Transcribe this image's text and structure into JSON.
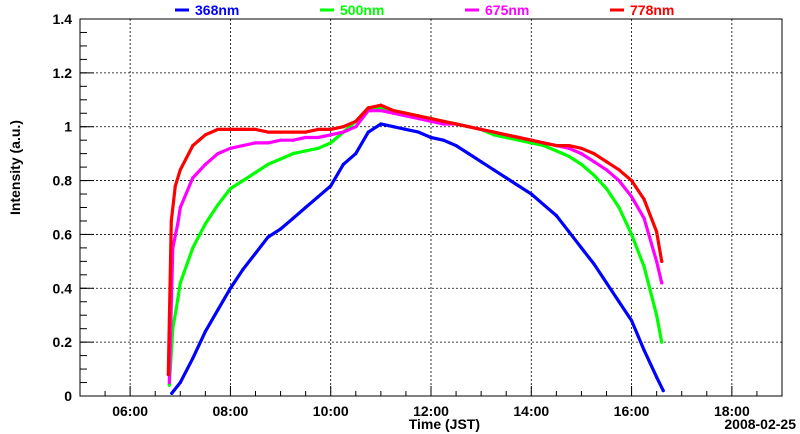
{
  "chart_data": {
    "type": "line",
    "title": "",
    "xlabel": "Time (JST)",
    "ylabel": "Intensity (a.u.)",
    "date_label": "2008-02-25",
    "x_unit": "hours JST",
    "xlim": [
      5.0,
      19.0
    ],
    "ylim": [
      0,
      1.4
    ],
    "x_ticks": [
      {
        "value": 6,
        "label": "06:00"
      },
      {
        "value": 8,
        "label": "08:00"
      },
      {
        "value": 10,
        "label": "10:00"
      },
      {
        "value": 12,
        "label": "12:00"
      },
      {
        "value": 14,
        "label": "14:00"
      },
      {
        "value": 16,
        "label": "16:00"
      },
      {
        "value": 18,
        "label": "18:00"
      }
    ],
    "y_ticks": [
      {
        "value": 0,
        "label": "0"
      },
      {
        "value": 0.2,
        "label": "0.2"
      },
      {
        "value": 0.4,
        "label": "0.4"
      },
      {
        "value": 0.6,
        "label": "0.6"
      },
      {
        "value": 0.8,
        "label": "0.8"
      },
      {
        "value": 1.0,
        "label": "1"
      },
      {
        "value": 1.2,
        "label": "1.2"
      },
      {
        "value": 1.4,
        "label": "1.4"
      }
    ],
    "grid": true,
    "legend_position": "top",
    "series": [
      {
        "name": "368nm",
        "color": "#0000ff",
        "x": [
          6.83,
          7.0,
          7.25,
          7.5,
          7.75,
          8.0,
          8.25,
          8.5,
          8.75,
          9.0,
          9.25,
          9.5,
          9.75,
          10.0,
          10.25,
          10.5,
          10.75,
          11.0,
          11.25,
          11.5,
          11.75,
          12.0,
          12.25,
          12.5,
          12.75,
          13.0,
          13.25,
          13.5,
          13.75,
          14.0,
          14.25,
          14.5,
          14.75,
          15.0,
          15.25,
          15.5,
          15.75,
          16.0,
          16.25,
          16.5,
          16.63
        ],
        "y": [
          0.01,
          0.05,
          0.14,
          0.24,
          0.32,
          0.4,
          0.47,
          0.53,
          0.59,
          0.62,
          0.66,
          0.7,
          0.74,
          0.78,
          0.86,
          0.9,
          0.98,
          1.01,
          1.0,
          0.99,
          0.98,
          0.96,
          0.95,
          0.93,
          0.9,
          0.87,
          0.84,
          0.81,
          0.78,
          0.75,
          0.71,
          0.67,
          0.61,
          0.55,
          0.49,
          0.42,
          0.35,
          0.28,
          0.17,
          0.07,
          0.02
        ]
      },
      {
        "name": "500nm",
        "color": "#00ff00",
        "x": [
          6.78,
          6.85,
          6.95,
          7.0,
          7.25,
          7.5,
          7.75,
          8.0,
          8.25,
          8.5,
          8.75,
          9.0,
          9.25,
          9.5,
          9.75,
          10.0,
          10.25,
          10.5,
          10.75,
          11.0,
          11.25,
          11.5,
          11.75,
          12.0,
          12.25,
          12.5,
          12.75,
          13.0,
          13.25,
          13.5,
          13.75,
          14.0,
          14.25,
          14.5,
          14.75,
          15.0,
          15.25,
          15.5,
          15.75,
          16.0,
          16.25,
          16.5,
          16.6
        ],
        "y": [
          0.04,
          0.25,
          0.36,
          0.42,
          0.55,
          0.64,
          0.71,
          0.77,
          0.8,
          0.83,
          0.86,
          0.88,
          0.9,
          0.91,
          0.92,
          0.94,
          0.98,
          1.02,
          1.07,
          1.07,
          1.06,
          1.05,
          1.04,
          1.03,
          1.02,
          1.01,
          1.0,
          0.99,
          0.97,
          0.96,
          0.95,
          0.94,
          0.93,
          0.91,
          0.89,
          0.86,
          0.82,
          0.77,
          0.7,
          0.6,
          0.48,
          0.3,
          0.2
        ]
      },
      {
        "name": "675nm",
        "color": "#ff00ff",
        "x": [
          6.78,
          6.85,
          6.95,
          7.0,
          7.25,
          7.5,
          7.75,
          8.0,
          8.25,
          8.5,
          8.75,
          9.0,
          9.25,
          9.5,
          9.75,
          10.0,
          10.25,
          10.5,
          10.75,
          11.0,
          11.25,
          11.5,
          11.75,
          12.0,
          12.25,
          12.5,
          12.75,
          13.0,
          13.25,
          13.5,
          13.75,
          14.0,
          14.25,
          14.5,
          14.75,
          15.0,
          15.25,
          15.5,
          15.75,
          16.0,
          16.25,
          16.5,
          16.6
        ],
        "y": [
          0.05,
          0.55,
          0.64,
          0.7,
          0.81,
          0.86,
          0.9,
          0.92,
          0.93,
          0.94,
          0.94,
          0.95,
          0.95,
          0.96,
          0.96,
          0.97,
          0.98,
          1.0,
          1.06,
          1.06,
          1.05,
          1.04,
          1.03,
          1.02,
          1.01,
          1.01,
          1.0,
          0.99,
          0.98,
          0.97,
          0.96,
          0.95,
          0.94,
          0.93,
          0.92,
          0.9,
          0.87,
          0.84,
          0.8,
          0.74,
          0.66,
          0.5,
          0.42
        ]
      },
      {
        "name": "778nm",
        "color": "#ff0000",
        "x": [
          6.76,
          6.82,
          6.9,
          7.0,
          7.25,
          7.5,
          7.75,
          8.0,
          8.25,
          8.5,
          8.75,
          9.0,
          9.25,
          9.5,
          9.75,
          10.0,
          10.25,
          10.5,
          10.75,
          11.0,
          11.25,
          11.5,
          11.75,
          12.0,
          12.25,
          12.5,
          12.75,
          13.0,
          13.25,
          13.5,
          13.75,
          14.0,
          14.25,
          14.5,
          14.75,
          15.0,
          15.25,
          15.5,
          15.75,
          16.0,
          16.25,
          16.5,
          16.6
        ],
        "y": [
          0.08,
          0.65,
          0.78,
          0.84,
          0.93,
          0.97,
          0.99,
          0.99,
          0.99,
          0.99,
          0.98,
          0.98,
          0.98,
          0.98,
          0.99,
          0.99,
          1.0,
          1.02,
          1.07,
          1.08,
          1.06,
          1.05,
          1.04,
          1.03,
          1.02,
          1.01,
          1.0,
          0.99,
          0.98,
          0.97,
          0.96,
          0.95,
          0.94,
          0.93,
          0.93,
          0.92,
          0.9,
          0.87,
          0.84,
          0.8,
          0.73,
          0.61,
          0.5
        ]
      }
    ]
  }
}
